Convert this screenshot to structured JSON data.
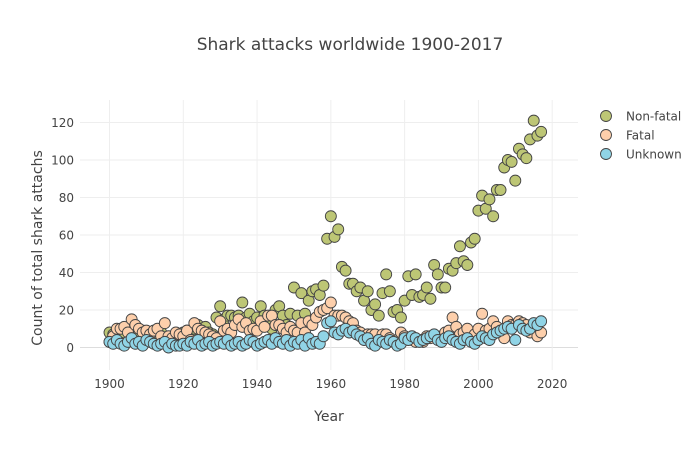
{
  "chart_data": {
    "type": "scatter",
    "title": "Shark attacks worldwide 1900-2017",
    "xlabel": "Year",
    "ylabel": "Count of total shark attachs",
    "xlim": [
      1892,
      2027
    ],
    "ylim": [
      -12,
      132
    ],
    "xticks": [
      1900,
      1920,
      1940,
      1960,
      1980,
      2000,
      2020
    ],
    "yticks": [
      0,
      20,
      40,
      60,
      80,
      100,
      120
    ],
    "grid": true,
    "legend_position": "top-right",
    "series": [
      {
        "name": "Non-fatal",
        "color": "#bdc675",
        "x": [
          1900,
          1901,
          1902,
          1903,
          1904,
          1905,
          1906,
          1907,
          1908,
          1909,
          1910,
          1911,
          1912,
          1913,
          1914,
          1915,
          1916,
          1917,
          1918,
          1919,
          1920,
          1921,
          1922,
          1923,
          1924,
          1925,
          1926,
          1927,
          1928,
          1929,
          1930,
          1931,
          1932,
          1933,
          1934,
          1935,
          1936,
          1937,
          1938,
          1939,
          1940,
          1941,
          1942,
          1943,
          1944,
          1945,
          1946,
          1947,
          1948,
          1949,
          1950,
          1951,
          1952,
          1953,
          1954,
          1955,
          1956,
          1957,
          1958,
          1959,
          1960,
          1961,
          1962,
          1963,
          1964,
          1965,
          1966,
          1967,
          1968,
          1969,
          1970,
          1971,
          1972,
          1973,
          1974,
          1975,
          1976,
          1977,
          1978,
          1979,
          1980,
          1981,
          1982,
          1983,
          1984,
          1985,
          1986,
          1987,
          1988,
          1989,
          1990,
          1991,
          1992,
          1993,
          1994,
          1995,
          1996,
          1997,
          1998,
          1999,
          2000,
          2001,
          2002,
          2003,
          2004,
          2005,
          2006,
          2007,
          2008,
          2009,
          2010,
          2011,
          2012,
          2013,
          2014,
          2015,
          2016,
          2017
        ],
        "y": [
          8,
          7,
          6,
          9,
          8,
          10,
          7,
          6,
          8,
          9,
          5,
          7,
          6,
          5,
          8,
          4,
          5,
          6,
          7,
          5,
          8,
          9,
          6,
          10,
          12,
          10,
          11,
          8,
          7,
          16,
          22,
          15,
          17,
          17,
          16,
          17,
          24,
          16,
          18,
          14,
          16,
          22,
          17,
          15,
          10,
          20,
          22,
          17,
          12,
          18,
          32,
          17,
          29,
          18,
          25,
          30,
          31,
          28,
          33,
          58,
          70,
          59,
          63,
          43,
          41,
          34,
          34,
          30,
          32,
          25,
          30,
          20,
          23,
          17,
          29,
          39,
          30,
          19,
          20,
          16,
          25,
          38,
          28,
          39,
          27,
          28,
          32,
          26,
          44,
          39,
          32,
          32,
          42,
          41,
          45,
          54,
          46,
          44,
          56,
          58,
          73,
          81,
          74,
          79,
          70,
          84,
          84,
          96,
          100,
          99,
          89,
          106,
          103,
          101,
          111,
          121,
          113,
          115
        ]
      },
      {
        "name": "Fatal",
        "color": "#fdcfab",
        "x": [
          1900,
          1901,
          1902,
          1903,
          1904,
          1905,
          1906,
          1907,
          1908,
          1909,
          1910,
          1911,
          1912,
          1913,
          1914,
          1915,
          1916,
          1917,
          1918,
          1919,
          1920,
          1921,
          1922,
          1923,
          1924,
          1925,
          1926,
          1927,
          1928,
          1929,
          1930,
          1931,
          1932,
          1933,
          1934,
          1935,
          1936,
          1937,
          1938,
          1939,
          1940,
          1941,
          1942,
          1943,
          1944,
          1945,
          1946,
          1947,
          1948,
          1949,
          1950,
          1951,
          1952,
          1953,
          1954,
          1955,
          1956,
          1957,
          1958,
          1959,
          1960,
          1961,
          1962,
          1963,
          1964,
          1965,
          1966,
          1967,
          1968,
          1969,
          1970,
          1971,
          1972,
          1973,
          1974,
          1975,
          1976,
          1977,
          1978,
          1979,
          1980,
          1981,
          1982,
          1983,
          1984,
          1985,
          1986,
          1987,
          1988,
          1989,
          1990,
          1991,
          1992,
          1993,
          1994,
          1995,
          1996,
          1997,
          1998,
          1999,
          2000,
          2001,
          2002,
          2003,
          2004,
          2005,
          2006,
          2007,
          2008,
          2009,
          2010,
          2011,
          2012,
          2013,
          2014,
          2015,
          2016,
          2017
        ],
        "y": [
          3,
          6,
          10,
          10,
          11,
          8,
          15,
          12,
          10,
          8,
          9,
          7,
          9,
          10,
          6,
          13,
          6,
          5,
          8,
          7,
          6,
          9,
          4,
          13,
          10,
          9,
          8,
          7,
          6,
          5,
          14,
          9,
          10,
          8,
          12,
          15,
          11,
          13,
          9,
          10,
          9,
          14,
          11,
          17,
          17,
          12,
          12,
          10,
          8,
          11,
          9,
          8,
          13,
          8,
          14,
          12,
          16,
          19,
          20,
          21,
          24,
          17,
          17,
          17,
          16,
          14,
          13,
          9,
          8,
          6,
          7,
          7,
          7,
          4,
          7,
          7,
          5,
          3,
          4,
          8,
          6,
          5,
          4,
          3,
          4,
          3,
          6,
          5,
          6,
          5,
          6,
          8,
          9,
          16,
          11,
          7,
          8,
          10,
          5,
          7,
          10,
          18,
          9,
          10,
          14,
          11,
          9,
          5,
          14,
          12,
          12,
          14,
          13,
          12,
          8,
          10,
          6,
          8
        ]
      },
      {
        "name": "Unknown",
        "color": "#90d4e6",
        "x": [
          1900,
          1901,
          1902,
          1903,
          1904,
          1905,
          1906,
          1907,
          1908,
          1909,
          1910,
          1911,
          1912,
          1913,
          1914,
          1915,
          1916,
          1917,
          1918,
          1919,
          1920,
          1921,
          1922,
          1923,
          1924,
          1925,
          1926,
          1927,
          1928,
          1929,
          1930,
          1931,
          1932,
          1933,
          1934,
          1935,
          1936,
          1937,
          1938,
          1939,
          1940,
          1941,
          1942,
          1943,
          1944,
          1945,
          1946,
          1947,
          1948,
          1949,
          1950,
          1951,
          1952,
          1953,
          1954,
          1955,
          1956,
          1957,
          1958,
          1959,
          1960,
          1961,
          1962,
          1963,
          1964,
          1965,
          1966,
          1967,
          1968,
          1969,
          1970,
          1971,
          1972,
          1973,
          1974,
          1975,
          1976,
          1977,
          1978,
          1979,
          1980,
          1981,
          1982,
          1983,
          1984,
          1985,
          1986,
          1987,
          1988,
          1989,
          1990,
          1991,
          1992,
          1993,
          1994,
          1995,
          1996,
          1997,
          1998,
          1999,
          2000,
          2001,
          2002,
          2003,
          2004,
          2005,
          2006,
          2007,
          2008,
          2009,
          2010,
          2011,
          2012,
          2013,
          2014,
          2015,
          2016,
          2017
        ],
        "y": [
          3,
          2,
          4,
          2,
          1,
          3,
          5,
          2,
          3,
          1,
          4,
          3,
          2,
          1,
          2,
          3,
          0,
          2,
          1,
          1,
          2,
          1,
          3,
          2,
          4,
          1,
          2,
          3,
          1,
          2,
          3,
          2,
          4,
          1,
          2,
          3,
          1,
          2,
          4,
          3,
          1,
          2,
          3,
          4,
          2,
          5,
          3,
          2,
          4,
          1,
          3,
          2,
          4,
          1,
          5,
          2,
          3,
          2,
          6,
          13,
          14,
          8,
          7,
          9,
          10,
          8,
          9,
          7,
          6,
          4,
          5,
          2,
          1,
          4,
          3,
          2,
          4,
          3,
          1,
          2,
          5,
          4,
          6,
          5,
          3,
          4,
          5,
          6,
          7,
          4,
          3,
          5,
          6,
          4,
          3,
          2,
          4,
          5,
          3,
          2,
          4,
          6,
          5,
          4,
          7,
          8,
          9,
          10,
          11,
          10,
          4,
          12,
          10,
          9,
          10,
          13,
          12,
          14
        ]
      }
    ]
  }
}
